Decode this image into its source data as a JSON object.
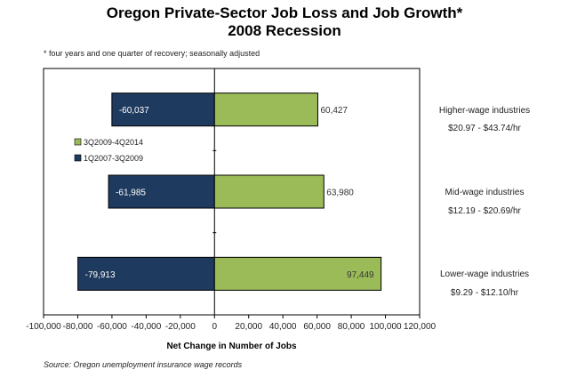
{
  "chart_data": {
    "type": "bar",
    "orientation": "horizontal",
    "title_line1": "Oregon Private-Sector Job Loss and Job Growth*",
    "title_line2": "2008 Recession",
    "note": "* four years and one quarter of recovery; seasonally adjusted",
    "xlabel": "Net Change in Number of Jobs",
    "source": "Source: Oregon unemployment insurance wage records",
    "xlim": [
      -100000,
      120000
    ],
    "xticks": [
      -100000,
      -80000,
      -60000,
      -40000,
      -20000,
      0,
      20000,
      40000,
      60000,
      80000,
      100000,
      120000
    ],
    "xtick_labels": [
      "-100,000",
      "-80,000",
      "-60,000",
      "-40,000",
      "-20,000",
      "0",
      "20,000",
      "40,000",
      "60,000",
      "80,000",
      "100,000",
      "120,000"
    ],
    "categories": [
      {
        "name": "Higher-wage industries",
        "range": "$20.97 - $43.74/hr"
      },
      {
        "name": "Mid-wage industries",
        "range": "$12.19 - $20.69/hr"
      },
      {
        "name": "Lower-wage industries",
        "range": "$9.29 - $12.10/hr"
      }
    ],
    "series": [
      {
        "name": "1Q2007-3Q2009",
        "color": "#1f3a5f",
        "label_color": "#ffffff",
        "values": [
          -60037,
          -61985,
          -79913
        ],
        "labels": [
          "-60,037",
          "-61,985",
          "-79,913"
        ]
      },
      {
        "name": "3Q2009-4Q2014",
        "color": "#9bbb59",
        "label_color": "#333333",
        "values": [
          60427,
          63980,
          97449
        ],
        "labels": [
          "60,427",
          "63,980",
          "97,449"
        ]
      }
    ],
    "legend": [
      {
        "name": "3Q2009-4Q2014",
        "color": "#9bbb59"
      },
      {
        "name": "1Q2007-3Q2009",
        "color": "#1f3a5f"
      }
    ],
    "legend_position": "left"
  }
}
